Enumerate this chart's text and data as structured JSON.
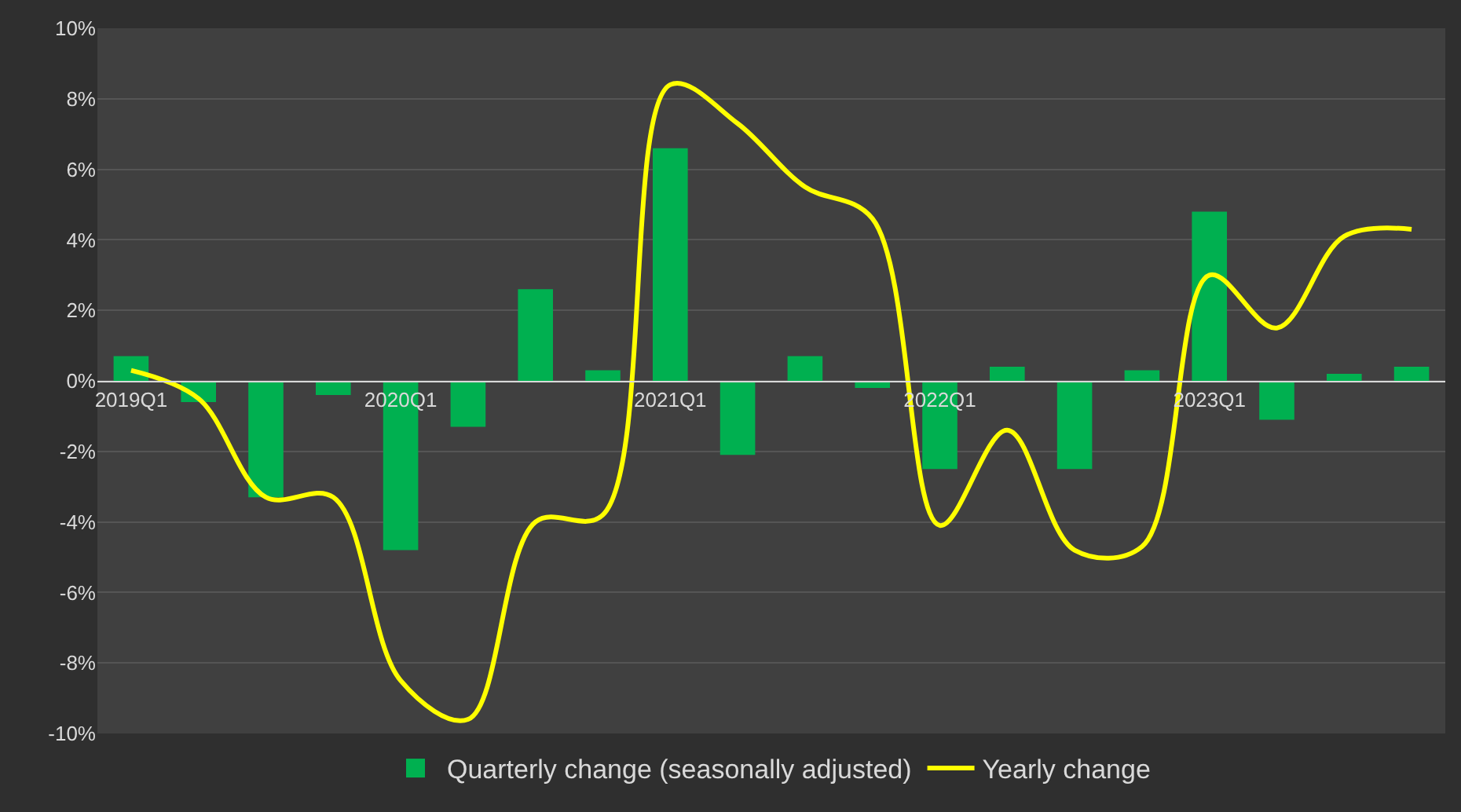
{
  "chart_data": {
    "type": "bar",
    "categories": [
      "2019Q1",
      null,
      null,
      null,
      "2020Q1",
      null,
      null,
      null,
      "2021Q1",
      null,
      null,
      null,
      "2022Q1",
      null,
      null,
      null,
      "2023Q1",
      null,
      null,
      null
    ],
    "series": [
      {
        "name": "Quarterly change (seasonally adjusted)",
        "color": "#00b050",
        "values": [
          0.7,
          -0.6,
          -3.3,
          -0.4,
          -4.8,
          -1.3,
          2.6,
          0.3,
          6.6,
          -2.1,
          0.7,
          -0.2,
          -2.5,
          0.4,
          -2.5,
          0.3,
          4.8,
          -1.1,
          0.2,
          0.4
        ]
      },
      {
        "name": "Yearly change",
        "type": "line",
        "color": "#ffff00",
        "values": [
          0.3,
          -0.5,
          -3.3,
          -3.3,
          -8.5,
          -9.6,
          -4.0,
          -3.8,
          8.4,
          7.3,
          5.5,
          4.6,
          -4.1,
          -1.4,
          -4.8,
          -4.7,
          3.0,
          1.5,
          4.1,
          4.3
        ]
      }
    ],
    "ylim": [
      -10,
      10
    ],
    "yticks": [
      {
        "value": -10,
        "label": "-10%"
      },
      {
        "value": -8,
        "label": "-8%"
      },
      {
        "value": -6,
        "label": "-6%"
      },
      {
        "value": -4,
        "label": "-4%"
      },
      {
        "value": -2,
        "label": "-2%"
      },
      {
        "value": 0,
        "label": "0%"
      },
      {
        "value": 2,
        "label": "2%"
      },
      {
        "value": 4,
        "label": "4%"
      },
      {
        "value": 6,
        "label": "6%"
      },
      {
        "value": 8,
        "label": "8%"
      },
      {
        "value": 10,
        "label": "10%"
      }
    ],
    "grid": "y",
    "legend": "bottom",
    "marker": "none",
    "line_style": "solid"
  }
}
